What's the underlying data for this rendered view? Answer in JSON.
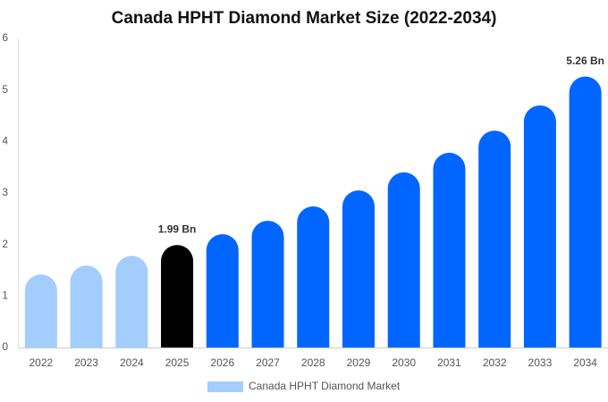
{
  "chart_data": {
    "type": "bar",
    "title": "Canada HPHT Diamond Market Size (2022-2034)",
    "categories": [
      "2022",
      "2023",
      "2024",
      "2025",
      "2026",
      "2027",
      "2028",
      "2029",
      "2030",
      "2031",
      "2032",
      "2033",
      "2034"
    ],
    "series": [
      {
        "name": "Canada HPHT Diamond Market",
        "color": "#a3cdfd",
        "values": [
          1.42,
          1.59,
          1.78,
          1.99,
          2.2,
          2.46,
          2.74,
          3.05,
          3.4,
          3.78,
          4.21,
          4.7,
          5.26
        ],
        "value_labels": [
          null,
          null,
          null,
          "1.99 Bn",
          null,
          null,
          null,
          null,
          null,
          null,
          null,
          null,
          "5.26 Bn"
        ],
        "colors": [
          "#a3cdfd",
          "#a3cdfd",
          "#a3cdfd",
          "#000000",
          "#0066ff",
          "#0066ff",
          "#0066ff",
          "#0066ff",
          "#0066ff",
          "#0066ff",
          "#0066ff",
          "#0066ff",
          "#0066ff"
        ]
      }
    ],
    "ylim": [
      0,
      6
    ],
    "yticks": [
      0,
      1,
      2,
      3,
      4,
      5,
      6
    ],
    "grid": false,
    "legend": "bottom"
  }
}
